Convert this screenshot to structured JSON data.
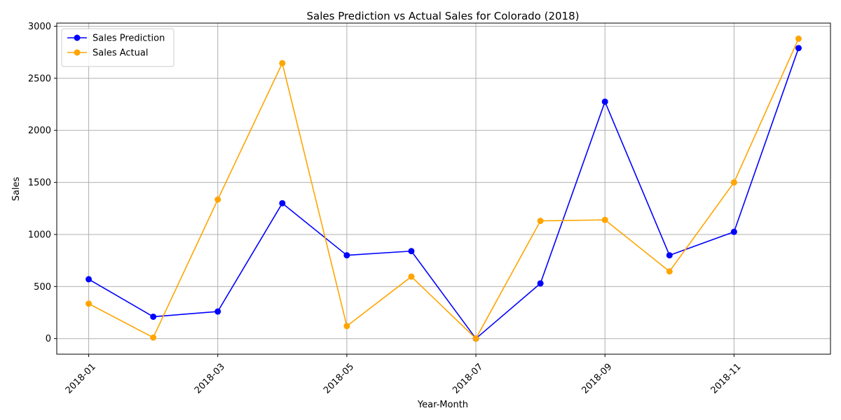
{
  "chart_data": {
    "type": "line",
    "title": "Sales Prediction vs Actual Sales for Colorado (2018)",
    "xlabel": "Year-Month",
    "ylabel": "Sales",
    "x": [
      "2018-01",
      "2018-02",
      "2018-03",
      "2018-04",
      "2018-05",
      "2018-06",
      "2018-07",
      "2018-08",
      "2018-09",
      "2018-10",
      "2018-11",
      "2018-12"
    ],
    "x_tick_labels": [
      "2018-01",
      "2018-03",
      "2018-05",
      "2018-07",
      "2018-09",
      "2018-11"
    ],
    "y_ticks": [
      0,
      500,
      1000,
      1500,
      2000,
      2500,
      3000
    ],
    "ylim": [
      -150,
      3030
    ],
    "grid": true,
    "legend_position": "upper-left",
    "series": [
      {
        "name": "Sales Prediction",
        "color": "#0000ff",
        "values": [
          570,
          210,
          260,
          1300,
          800,
          840,
          0,
          530,
          2275,
          800,
          1025,
          2790
        ]
      },
      {
        "name": "Sales Actual",
        "color": "#ffa500",
        "values": [
          335,
          10,
          1335,
          2645,
          120,
          595,
          0,
          1130,
          1140,
          645,
          1500,
          2880
        ]
      }
    ]
  }
}
